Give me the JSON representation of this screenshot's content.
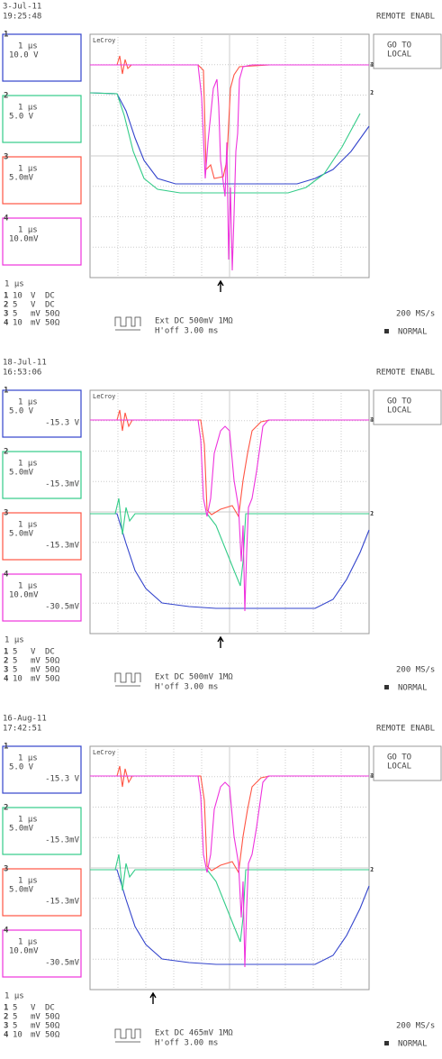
{
  "screens": [
    {
      "date": "3-Jul-11",
      "time": "19:25:48",
      "status": "REMOTE ENABL",
      "button": [
        "GO TO",
        "LOCAL"
      ],
      "brand": "LeCroy",
      "channels": [
        {
          "num": "1",
          "timebase": "1 µs",
          "volts": "10.0 V",
          "color": "#3344cc"
        },
        {
          "num": "2",
          "timebase": "1 µs",
          "volts": "5.0 V",
          "color": "#33cc88"
        },
        {
          "num": "3",
          "timebase": "1 µs",
          "volts": "5.0mV",
          "color": "#ff5544"
        },
        {
          "num": "4",
          "timebase": "1 µs",
          "volts": "10.0mV",
          "color": "#ee33dd"
        }
      ],
      "timebase": "1 µs",
      "settings": [
        [
          "1",
          "10",
          "V",
          "DC"
        ],
        [
          "2",
          "5",
          "V",
          "DC"
        ],
        [
          "3",
          "5",
          "mV",
          "50Ω"
        ],
        [
          "4",
          "10",
          "mV",
          "50Ω"
        ]
      ],
      "trigger": {
        "source": "Ext DC 500mV 1MΩ",
        "holdoff": "H'off 3.00 ms"
      },
      "sample_rate": "200 MS/s",
      "mode": "NORMAL"
    },
    {
      "date": "18-Jul-11",
      "time": "16:53:06",
      "status": "REMOTE ENABL",
      "button": [
        "GO TO",
        "LOCAL"
      ],
      "brand": "LeCroy",
      "channels": [
        {
          "num": "1",
          "timebase": "1 µs",
          "volts": "5.0 V",
          "offset": "-15.3 V",
          "color": "#3344cc"
        },
        {
          "num": "2",
          "timebase": "1 µs",
          "volts": "5.0mV",
          "offset": "-15.3mV",
          "color": "#33cc88"
        },
        {
          "num": "3",
          "timebase": "1 µs",
          "volts": "5.0mV",
          "offset": "-15.3mV",
          "color": "#ff5544"
        },
        {
          "num": "4",
          "timebase": "1 µs",
          "volts": "10.0mV",
          "offset": "-30.5mV",
          "color": "#ee33dd"
        }
      ],
      "timebase": "1 µs",
      "settings": [
        [
          "1",
          "5",
          "V",
          "DC"
        ],
        [
          "2",
          "5",
          "mV",
          "50Ω"
        ],
        [
          "3",
          "5",
          "mV",
          "50Ω"
        ],
        [
          "4",
          "10",
          "mV",
          "50Ω"
        ]
      ],
      "trigger": {
        "source": "Ext DC 500mV 1MΩ",
        "holdoff": "H'off 3.00 ms"
      },
      "sample_rate": "200 MS/s",
      "mode": "NORMAL"
    },
    {
      "date": "16-Aug-11",
      "time": "17:42:51",
      "status": "REMOTE ENABL",
      "button": [
        "GO TO",
        "LOCAL"
      ],
      "brand": "LeCroy",
      "channels": [
        {
          "num": "1",
          "timebase": "1 µs",
          "volts": "5.0 V",
          "offset": "-15.3 V",
          "color": "#3344cc"
        },
        {
          "num": "2",
          "timebase": "1 µs",
          "volts": "5.0mV",
          "offset": "-15.3mV",
          "color": "#33cc88"
        },
        {
          "num": "3",
          "timebase": "1 µs",
          "volts": "5.0mV",
          "offset": "-15.3mV",
          "color": "#ff5544"
        },
        {
          "num": "4",
          "timebase": "1 µs",
          "volts": "10.0mV",
          "offset": "-30.5mV",
          "color": "#ee33dd"
        }
      ],
      "timebase": "1 µs",
      "settings": [
        [
          "1",
          "5",
          "V",
          "DC"
        ],
        [
          "2",
          "5",
          "mV",
          "50Ω"
        ],
        [
          "3",
          "5",
          "mV",
          "50Ω"
        ],
        [
          "4",
          "10",
          "mV",
          "50Ω"
        ]
      ],
      "trigger": {
        "source": "Ext DC 465mV 1MΩ",
        "holdoff": "H'off 3.00 ms"
      },
      "sample_rate": "200 MS/s",
      "mode": "NORMAL"
    }
  ]
}
